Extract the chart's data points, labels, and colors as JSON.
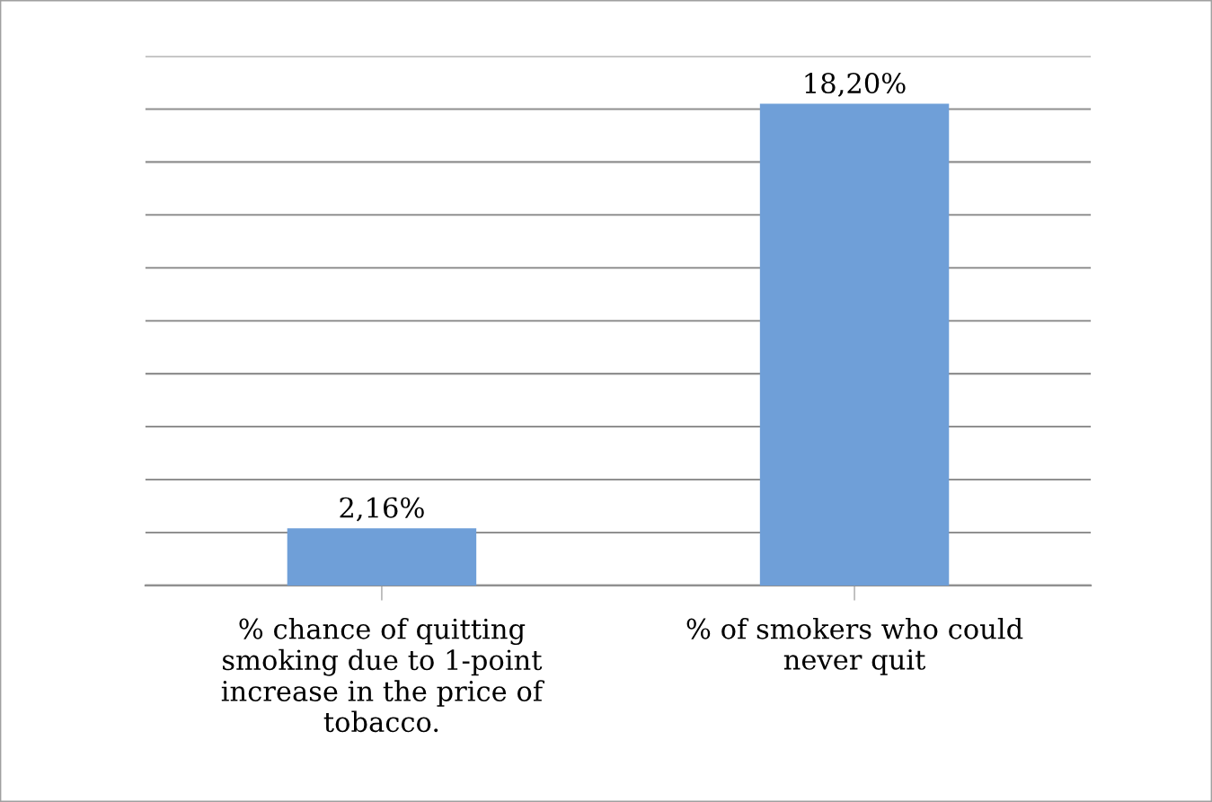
{
  "chart_data": {
    "type": "bar",
    "categories": [
      "% chance of quitting smoking due to 1-point increase in the price of tobacco.",
      "% of smokers who could never quit"
    ],
    "values": [
      2.16,
      18.2
    ],
    "value_labels": [
      "2,16%",
      "18,20%"
    ],
    "color": "#6f9fd8",
    "ylim": [
      0,
      20
    ],
    "yticks": [
      {
        "value": 0,
        "label": null
      },
      {
        "value": 2,
        "label": null
      },
      {
        "value": 4,
        "label": null
      },
      {
        "value": 6,
        "label": null
      },
      {
        "value": 8,
        "label": null
      },
      {
        "value": 10,
        "label": null
      },
      {
        "value": 12,
        "label": null
      },
      {
        "value": 14,
        "label": null
      },
      {
        "value": 16,
        "label": null
      },
      {
        "value": 18,
        "label": null
      },
      {
        "value": 20,
        "label": null
      }
    ],
    "grid": "y",
    "tick_labels": "x"
  }
}
